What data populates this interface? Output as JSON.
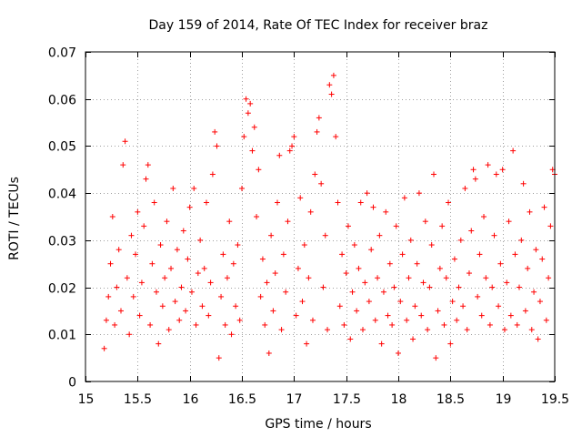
{
  "chart_data": {
    "type": "scatter",
    "title": "Day 159 of 2014, Rate Of TEC Index for receiver braz",
    "xlabel": "GPS time / hours",
    "ylabel": "ROTI / TECUs",
    "xlim": [
      15,
      19.5
    ],
    "ylim": [
      0,
      0.07
    ],
    "xticks": [
      15,
      15.5,
      16,
      16.5,
      17,
      17.5,
      18,
      18.5,
      19,
      19.5
    ],
    "xtick_labels": [
      "15",
      "15.5",
      "16",
      "16.5",
      "17",
      "17.5",
      "18",
      "18.5",
      "19",
      "19.5"
    ],
    "yticks": [
      0,
      0.01,
      0.02,
      0.03,
      0.04,
      0.05,
      0.06,
      0.07
    ],
    "ytick_labels": [
      "0",
      "0.01",
      "0.02",
      "0.03",
      "0.04",
      "0.05",
      "0.06",
      "0.07"
    ],
    "grid": true,
    "marker": "+",
    "color": "#ff0000",
    "points": [
      [
        15.18,
        0.007
      ],
      [
        15.2,
        0.013
      ],
      [
        15.22,
        0.018
      ],
      [
        15.24,
        0.025
      ],
      [
        15.26,
        0.035
      ],
      [
        15.28,
        0.012
      ],
      [
        15.3,
        0.02
      ],
      [
        15.32,
        0.028
      ],
      [
        15.34,
        0.015
      ],
      [
        15.36,
        0.046
      ],
      [
        15.38,
        0.051
      ],
      [
        15.4,
        0.022
      ],
      [
        15.42,
        0.01
      ],
      [
        15.44,
        0.031
      ],
      [
        15.46,
        0.018
      ],
      [
        15.48,
        0.027
      ],
      [
        15.5,
        0.036
      ],
      [
        15.52,
        0.014
      ],
      [
        15.54,
        0.021
      ],
      [
        15.56,
        0.033
      ],
      [
        15.58,
        0.043
      ],
      [
        15.6,
        0.046
      ],
      [
        15.62,
        0.012
      ],
      [
        15.64,
        0.025
      ],
      [
        15.66,
        0.038
      ],
      [
        15.68,
        0.019
      ],
      [
        15.7,
        0.008
      ],
      [
        15.72,
        0.029
      ],
      [
        15.74,
        0.016
      ],
      [
        15.76,
        0.022
      ],
      [
        15.78,
        0.034
      ],
      [
        15.8,
        0.011
      ],
      [
        15.82,
        0.024
      ],
      [
        15.84,
        0.041
      ],
      [
        15.86,
        0.017
      ],
      [
        15.88,
        0.028
      ],
      [
        15.9,
        0.013
      ],
      [
        15.92,
        0.02
      ],
      [
        15.94,
        0.032
      ],
      [
        15.96,
        0.015
      ],
      [
        15.98,
        0.026
      ],
      [
        16.0,
        0.037
      ],
      [
        16.02,
        0.019
      ],
      [
        16.04,
        0.041
      ],
      [
        16.06,
        0.012
      ],
      [
        16.08,
        0.023
      ],
      [
        16.1,
        0.03
      ],
      [
        16.12,
        0.016
      ],
      [
        16.14,
        0.024
      ],
      [
        16.16,
        0.038
      ],
      [
        16.18,
        0.014
      ],
      [
        16.2,
        0.021
      ],
      [
        16.22,
        0.044
      ],
      [
        16.24,
        0.053
      ],
      [
        16.26,
        0.05
      ],
      [
        16.28,
        0.005
      ],
      [
        16.3,
        0.018
      ],
      [
        16.32,
        0.027
      ],
      [
        16.34,
        0.012
      ],
      [
        16.36,
        0.022
      ],
      [
        16.38,
        0.034
      ],
      [
        16.4,
        0.01
      ],
      [
        16.42,
        0.025
      ],
      [
        16.44,
        0.016
      ],
      [
        16.46,
        0.029
      ],
      [
        16.48,
        0.013
      ],
      [
        16.5,
        0.041
      ],
      [
        16.52,
        0.052
      ],
      [
        16.54,
        0.06
      ],
      [
        16.56,
        0.057
      ],
      [
        16.58,
        0.059
      ],
      [
        16.6,
        0.049
      ],
      [
        16.62,
        0.054
      ],
      [
        16.64,
        0.035
      ],
      [
        16.66,
        0.045
      ],
      [
        16.68,
        0.018
      ],
      [
        16.7,
        0.026
      ],
      [
        16.72,
        0.012
      ],
      [
        16.74,
        0.021
      ],
      [
        16.76,
        0.006
      ],
      [
        16.78,
        0.031
      ],
      [
        16.8,
        0.015
      ],
      [
        16.82,
        0.023
      ],
      [
        16.84,
        0.038
      ],
      [
        16.86,
        0.048
      ],
      [
        16.88,
        0.011
      ],
      [
        16.9,
        0.027
      ],
      [
        16.92,
        0.019
      ],
      [
        16.94,
        0.034
      ],
      [
        16.96,
        0.049
      ],
      [
        16.98,
        0.05
      ],
      [
        17.0,
        0.052
      ],
      [
        17.02,
        0.014
      ],
      [
        17.04,
        0.024
      ],
      [
        17.06,
        0.039
      ],
      [
        17.08,
        0.017
      ],
      [
        17.1,
        0.029
      ],
      [
        17.12,
        0.008
      ],
      [
        17.14,
        0.022
      ],
      [
        17.16,
        0.036
      ],
      [
        17.18,
        0.013
      ],
      [
        17.2,
        0.044
      ],
      [
        17.22,
        0.053
      ],
      [
        17.24,
        0.056
      ],
      [
        17.26,
        0.042
      ],
      [
        17.28,
        0.02
      ],
      [
        17.3,
        0.031
      ],
      [
        17.32,
        0.011
      ],
      [
        17.34,
        0.063
      ],
      [
        17.36,
        0.061
      ],
      [
        17.38,
        0.065
      ],
      [
        17.4,
        0.052
      ],
      [
        17.42,
        0.038
      ],
      [
        17.44,
        0.016
      ],
      [
        17.46,
        0.027
      ],
      [
        17.48,
        0.012
      ],
      [
        17.5,
        0.023
      ],
      [
        17.52,
        0.033
      ],
      [
        17.54,
        0.009
      ],
      [
        17.56,
        0.019
      ],
      [
        17.58,
        0.029
      ],
      [
        17.6,
        0.015
      ],
      [
        17.62,
        0.024
      ],
      [
        17.64,
        0.038
      ],
      [
        17.66,
        0.011
      ],
      [
        17.68,
        0.021
      ],
      [
        17.7,
        0.04
      ],
      [
        17.72,
        0.017
      ],
      [
        17.74,
        0.028
      ],
      [
        17.76,
        0.037
      ],
      [
        17.78,
        0.013
      ],
      [
        17.8,
        0.022
      ],
      [
        17.82,
        0.031
      ],
      [
        17.84,
        0.008
      ],
      [
        17.86,
        0.019
      ],
      [
        17.88,
        0.036
      ],
      [
        17.9,
        0.014
      ],
      [
        17.92,
        0.025
      ],
      [
        17.94,
        0.012
      ],
      [
        17.96,
        0.02
      ],
      [
        17.98,
        0.033
      ],
      [
        18.0,
        0.006
      ],
      [
        18.02,
        0.017
      ],
      [
        18.04,
        0.027
      ],
      [
        18.06,
        0.039
      ],
      [
        18.08,
        0.013
      ],
      [
        18.1,
        0.022
      ],
      [
        18.12,
        0.03
      ],
      [
        18.14,
        0.009
      ],
      [
        18.16,
        0.016
      ],
      [
        18.18,
        0.025
      ],
      [
        18.2,
        0.04
      ],
      [
        18.22,
        0.014
      ],
      [
        18.24,
        0.021
      ],
      [
        18.26,
        0.034
      ],
      [
        18.28,
        0.011
      ],
      [
        18.3,
        0.02
      ],
      [
        18.32,
        0.029
      ],
      [
        18.34,
        0.044
      ],
      [
        18.36,
        0.005
      ],
      [
        18.38,
        0.015
      ],
      [
        18.4,
        0.024
      ],
      [
        18.42,
        0.033
      ],
      [
        18.44,
        0.012
      ],
      [
        18.46,
        0.022
      ],
      [
        18.48,
        0.038
      ],
      [
        18.5,
        0.008
      ],
      [
        18.52,
        0.017
      ],
      [
        18.54,
        0.026
      ],
      [
        18.56,
        0.013
      ],
      [
        18.58,
        0.02
      ],
      [
        18.6,
        0.03
      ],
      [
        18.62,
        0.016
      ],
      [
        18.64,
        0.041
      ],
      [
        18.66,
        0.011
      ],
      [
        18.68,
        0.023
      ],
      [
        18.7,
        0.032
      ],
      [
        18.72,
        0.045
      ],
      [
        18.74,
        0.043
      ],
      [
        18.76,
        0.018
      ],
      [
        18.78,
        0.027
      ],
      [
        18.8,
        0.014
      ],
      [
        18.82,
        0.035
      ],
      [
        18.84,
        0.022
      ],
      [
        18.86,
        0.046
      ],
      [
        18.88,
        0.012
      ],
      [
        18.9,
        0.02
      ],
      [
        18.92,
        0.031
      ],
      [
        18.94,
        0.044
      ],
      [
        18.96,
        0.016
      ],
      [
        18.98,
        0.025
      ],
      [
        19.0,
        0.045
      ],
      [
        19.02,
        0.011
      ],
      [
        19.04,
        0.021
      ],
      [
        19.06,
        0.034
      ],
      [
        19.08,
        0.014
      ],
      [
        19.1,
        0.049
      ],
      [
        19.12,
        0.027
      ],
      [
        19.14,
        0.012
      ],
      [
        19.16,
        0.02
      ],
      [
        19.18,
        0.03
      ],
      [
        19.2,
        0.042
      ],
      [
        19.22,
        0.015
      ],
      [
        19.24,
        0.024
      ],
      [
        19.26,
        0.036
      ],
      [
        19.28,
        0.011
      ],
      [
        19.3,
        0.019
      ],
      [
        19.32,
        0.028
      ],
      [
        19.34,
        0.009
      ],
      [
        19.36,
        0.017
      ],
      [
        19.38,
        0.026
      ],
      [
        19.4,
        0.037
      ],
      [
        19.42,
        0.013
      ],
      [
        19.44,
        0.022
      ],
      [
        19.46,
        0.033
      ],
      [
        19.48,
        0.045
      ],
      [
        19.5,
        0.044
      ]
    ]
  }
}
